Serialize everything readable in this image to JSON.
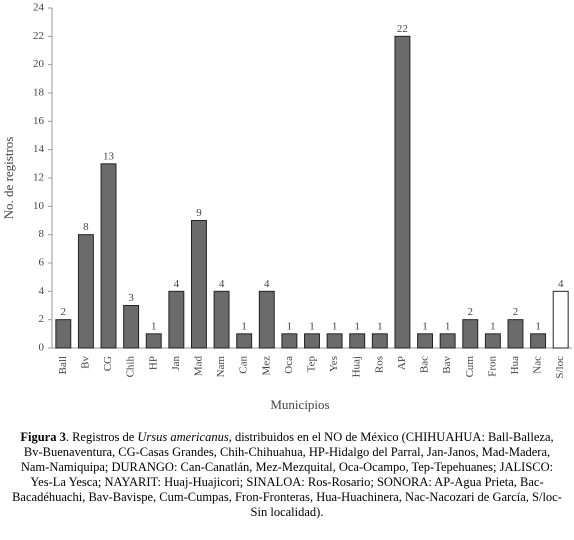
{
  "chart_data": {
    "type": "bar",
    "y_label": "No. de registros",
    "x_label": "Municipios",
    "categories": [
      "Ball",
      "Bv",
      "CG",
      "Chih",
      "HP",
      "Jan",
      "Mad",
      "Nam",
      "Can",
      "Mez",
      "Oca",
      "Tep",
      "Yes",
      "Huaj",
      "Ros",
      "AP",
      "Bac",
      "Bav",
      "Cum",
      "Fron",
      "Hua",
      "Nac",
      "S/loc"
    ],
    "values": [
      2,
      8,
      13,
      3,
      1,
      4,
      9,
      4,
      1,
      4,
      1,
      1,
      1,
      1,
      1,
      22,
      1,
      1,
      2,
      1,
      2,
      1,
      4
    ],
    "colors": [
      "#6b6b6b",
      "#6b6b6b",
      "#6b6b6b",
      "#6b6b6b",
      "#6b6b6b",
      "#6b6b6b",
      "#6b6b6b",
      "#6b6b6b",
      "#6b6b6b",
      "#6b6b6b",
      "#6b6b6b",
      "#6b6b6b",
      "#6b6b6b",
      "#6b6b6b",
      "#6b6b6b",
      "#6b6b6b",
      "#6b6b6b",
      "#6b6b6b",
      "#6b6b6b",
      "#6b6b6b",
      "#6b6b6b",
      "#6b6b6b",
      "#ffffff"
    ],
    "ylim": [
      0,
      24
    ],
    "yticks": [
      0,
      2,
      4,
      6,
      8,
      10,
      12,
      14,
      16,
      18,
      20,
      22,
      24
    ],
    "grid": false
  },
  "caption": {
    "label": "Figura 3",
    "text_1": ". Registros de ",
    "species": "Ursus americanus",
    "text_2": ", distribuidos en el NO de México (CHIHUAHUA: Ball-Balleza, Bv-Buenaventura, CG-Casas Grandes, Chih-Chihuahua, HP-Hidalgo del Parral, Jan-Janos, Mad-Madera, Nam-Namiquipa; DURANGO: Can-Canatlán, Mez-Mezquital, Oca-Ocampo, Tep-Tepehuanes; JALISCO: Yes-La Yesca; NAYARIT: Huaj-Huajicori; SINALOA: Ros-Rosario; SONORA: AP-Agua Prieta, Bac-Bacadéhuachi, Bav-Bavispe, Cum-Cumpas, Fron-Fronteras, Hua-Huachinera, Nac-Nacozari de García, S/loc-Sin localidad)."
  }
}
